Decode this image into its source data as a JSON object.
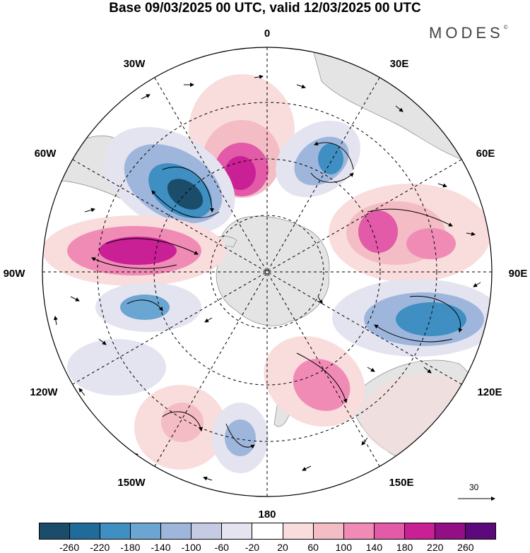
{
  "title": "Base 09/03/2025 00 UTC, valid 12/03/2025 00 UTC",
  "brand": "MODES",
  "brand_mark": "©",
  "longitude_labels": [
    "0",
    "30E",
    "60E",
    "90E",
    "120E",
    "150E",
    "180",
    "150W",
    "120W",
    "90W",
    "60W",
    "30W"
  ],
  "vector_reference": "30",
  "colorbar": {
    "colors": [
      "#1b4d6b",
      "#216b9b",
      "#3f8fc2",
      "#6aa6d1",
      "#9fb6dc",
      "#c6cbe4",
      "#e4e3f0",
      "#ffffff",
      "#f9dcdc",
      "#f4bcc4",
      "#f08bb6",
      "#e25aa8",
      "#c92096",
      "#930f86",
      "#5c0a7b"
    ],
    "ticks": [
      "-260",
      "-220",
      "-180",
      "-140",
      "-100",
      "-60",
      "-20",
      "20",
      "60",
      "100",
      "140",
      "180",
      "220",
      "260"
    ]
  }
}
